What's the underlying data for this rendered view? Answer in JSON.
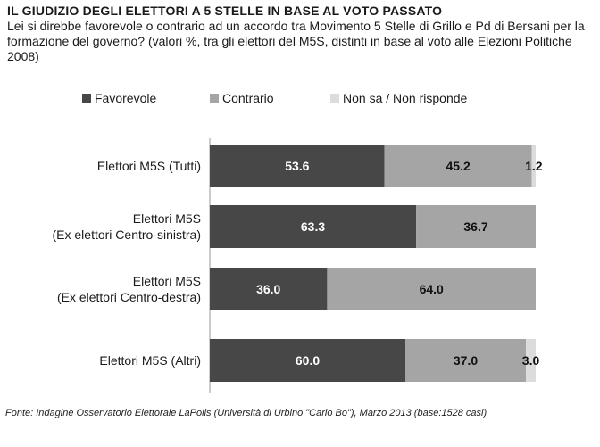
{
  "header": {
    "title": "IL GIUDIZIO DEGLI ELETTORI A 5 STELLE IN BASE AL VOTO PASSATO",
    "subtitle": "Lei si direbbe favorevole o contrario ad un accordo tra Movimento 5 Stelle di Grillo e Pd di Bersani per la formazione del governo? (valori %, tra gli elettori del M5S, distinti in base al voto alle Elezioni Politiche 2008)"
  },
  "footer": {
    "source": "Fonte: Indagine Osservatorio Elettorale LaPolis (Università di Urbino \"Carlo Bo\"), Marzo 2013 (base:1528 casi)"
  },
  "chart_data": {
    "type": "bar",
    "orientation": "horizontal",
    "stacked": true,
    "categories": [
      [
        "Elettori M5S (Tutti)"
      ],
      [
        "Elettori M5S",
        "(Ex elettori Centro-sinistra)"
      ],
      [
        "Elettori M5S",
        "(Ex elettori Centro-destra)"
      ],
      [
        "Elettori M5S (Altri)"
      ]
    ],
    "series": [
      {
        "name": "Favorevole",
        "color": "#474747",
        "label_color": "#ffffff",
        "values": [
          53.6,
          63.3,
          36.0,
          60.0
        ],
        "labels": [
          "53.6",
          "63.3",
          "36.0",
          "60.0"
        ]
      },
      {
        "name": "Contrario",
        "color": "#a5a5a5",
        "label_color": "#111111",
        "values": [
          45.2,
          36.7,
          64.0,
          37.0
        ],
        "labels": [
          "45.2",
          "36.7",
          "64.0",
          "37.0"
        ]
      },
      {
        "name": "Non sa / Non risponde",
        "color": "#dcdcdc",
        "label_color": "#111111",
        "values": [
          1.2,
          0,
          0,
          3.0
        ],
        "labels": [
          "1.2",
          "",
          "",
          "3.0"
        ]
      }
    ],
    "xlim": [
      0,
      100
    ],
    "legend": "top",
    "grid": false
  }
}
